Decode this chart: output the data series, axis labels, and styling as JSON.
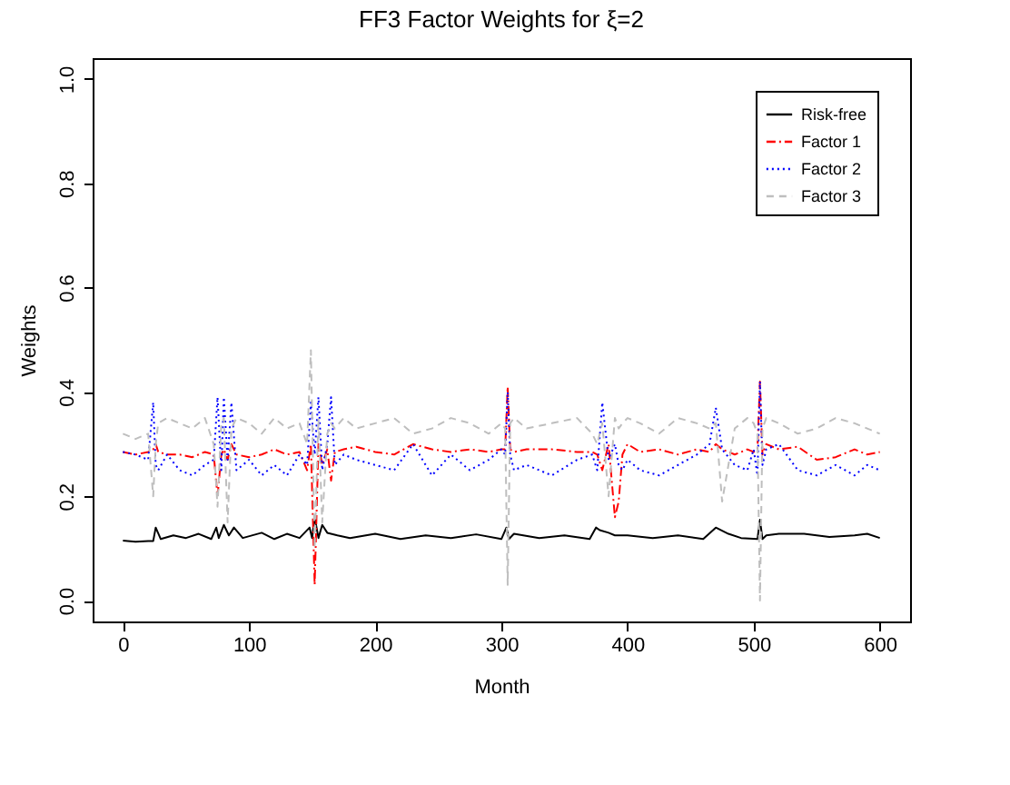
{
  "chart_data": {
    "type": "line",
    "title": "FF3 Factor Weights for ξ=2",
    "xlabel": "Month",
    "ylabel": "Weights",
    "xlim": [
      -24,
      624
    ],
    "xticks": [
      0,
      100,
      200,
      300,
      400,
      500,
      600
    ],
    "ylim": [
      -0.04,
      1.04
    ],
    "yticks": [
      {
        "value": 0,
        "label": "0.0"
      },
      0.2,
      0.4,
      0.6,
      0.8,
      {
        "value": 1,
        "label": "1.0"
      }
    ],
    "legend": "top right",
    "grid": false,
    "x": [
      0,
      10,
      20,
      24,
      26,
      28,
      35,
      45,
      55,
      65,
      72,
      75,
      78,
      80,
      83,
      86,
      90,
      100,
      110,
      120,
      130,
      140,
      146,
      149,
      152,
      155,
      158,
      162,
      165,
      168,
      175,
      185,
      200,
      215,
      230,
      245,
      260,
      275,
      290,
      300,
      303,
      305,
      307,
      310,
      320,
      340,
      360,
      372,
      376,
      380,
      385,
      390,
      393,
      396,
      400,
      410,
      425,
      440,
      455,
      465,
      470,
      475,
      485,
      495,
      500,
      503,
      505,
      507,
      510,
      520,
      535,
      550,
      565,
      580,
      590,
      600
    ],
    "series": [
      {
        "name": "Risk-free",
        "color": "#000000",
        "line_style": "solid",
        "x": [
          0,
          10,
          20,
          24,
          26,
          30,
          40,
          50,
          60,
          70,
          74,
          76,
          80,
          84,
          88,
          95,
          110,
          120,
          130,
          140,
          148,
          150,
          152,
          155,
          158,
          162,
          170,
          180,
          200,
          220,
          240,
          260,
          280,
          300,
          304,
          306,
          310,
          330,
          350,
          370,
          375,
          378,
          385,
          390,
          400,
          420,
          440,
          460,
          470,
          480,
          490,
          503,
          505,
          507,
          510,
          520,
          540,
          560,
          580,
          590,
          600
        ],
        "values": [
          0.115,
          0.113,
          0.114,
          0.114,
          0.14,
          0.118,
          0.125,
          0.12,
          0.128,
          0.118,
          0.14,
          0.12,
          0.145,
          0.125,
          0.14,
          0.12,
          0.13,
          0.118,
          0.128,
          0.12,
          0.14,
          0.12,
          0.16,
          0.12,
          0.145,
          0.13,
          0.125,
          0.12,
          0.128,
          0.118,
          0.125,
          0.12,
          0.127,
          0.118,
          0.14,
          0.118,
          0.128,
          0.12,
          0.125,
          0.118,
          0.14,
          0.135,
          0.13,
          0.125,
          0.125,
          0.12,
          0.125,
          0.118,
          0.14,
          0.128,
          0.12,
          0.118,
          0.155,
          0.118,
          0.125,
          0.128,
          0.128,
          0.122,
          0.125,
          0.128,
          0.12
        ]
      },
      {
        "name": "Factor 1",
        "color": "#ff0000",
        "line_style": "dashdot",
        "values": [
          0.285,
          0.28,
          0.285,
          0.29,
          0.3,
          0.285,
          0.28,
          0.28,
          0.275,
          0.285,
          0.28,
          0.2,
          0.28,
          0.29,
          0.27,
          0.3,
          0.28,
          0.275,
          0.28,
          0.29,
          0.28,
          0.285,
          0.25,
          0.3,
          0.03,
          0.3,
          0.26,
          0.29,
          0.23,
          0.285,
          0.29,
          0.295,
          0.285,
          0.28,
          0.3,
          0.29,
          0.285,
          0.29,
          0.285,
          0.29,
          0.29,
          0.41,
          0.29,
          0.285,
          0.29,
          0.29,
          0.285,
          0.285,
          0.28,
          0.25,
          0.3,
          0.16,
          0.19,
          0.28,
          0.3,
          0.285,
          0.29,
          0.28,
          0.29,
          0.285,
          0.3,
          0.29,
          0.28,
          0.29,
          0.285,
          0.29,
          0.42,
          0.28,
          0.3,
          0.29,
          0.295,
          0.27,
          0.275,
          0.29,
          0.28,
          0.285
        ]
      },
      {
        "name": "Factor 2",
        "color": "#0000ff",
        "line_style": "dotted",
        "values": [
          0.285,
          0.28,
          0.27,
          0.38,
          0.26,
          0.25,
          0.28,
          0.25,
          0.24,
          0.26,
          0.27,
          0.39,
          0.25,
          0.39,
          0.27,
          0.38,
          0.25,
          0.27,
          0.24,
          0.26,
          0.24,
          0.28,
          0.26,
          0.38,
          0.28,
          0.39,
          0.25,
          0.3,
          0.39,
          0.26,
          0.28,
          0.27,
          0.26,
          0.25,
          0.3,
          0.24,
          0.28,
          0.25,
          0.27,
          0.29,
          0.28,
          0.4,
          0.28,
          0.25,
          0.26,
          0.24,
          0.27,
          0.28,
          0.25,
          0.38,
          0.27,
          0.3,
          0.26,
          0.25,
          0.27,
          0.25,
          0.24,
          0.26,
          0.28,
          0.3,
          0.37,
          0.29,
          0.26,
          0.25,
          0.29,
          0.24,
          0.42,
          0.26,
          0.29,
          0.3,
          0.25,
          0.24,
          0.26,
          0.24,
          0.26,
          0.25
        ]
      },
      {
        "name": "Factor 3",
        "color": "#bebebe",
        "line_style": "dashed",
        "values": [
          0.32,
          0.31,
          0.32,
          0.2,
          0.3,
          0.34,
          0.35,
          0.34,
          0.33,
          0.35,
          0.3,
          0.18,
          0.34,
          0.35,
          0.15,
          0.33,
          0.35,
          0.34,
          0.32,
          0.35,
          0.33,
          0.34,
          0.3,
          0.48,
          0.1,
          0.35,
          0.15,
          0.32,
          0.34,
          0.33,
          0.35,
          0.33,
          0.34,
          0.35,
          0.32,
          0.33,
          0.35,
          0.34,
          0.32,
          0.34,
          0.33,
          0.03,
          0.34,
          0.35,
          0.33,
          0.34,
          0.35,
          0.32,
          0.3,
          0.34,
          0.2,
          0.35,
          0.33,
          0.34,
          0.35,
          0.34,
          0.32,
          0.35,
          0.34,
          0.33,
          0.34,
          0.19,
          0.33,
          0.35,
          0.34,
          0.32,
          0,
          0.33,
          0.35,
          0.34,
          0.32,
          0.33,
          0.35,
          0.34,
          0.33,
          0.32
        ]
      }
    ]
  }
}
